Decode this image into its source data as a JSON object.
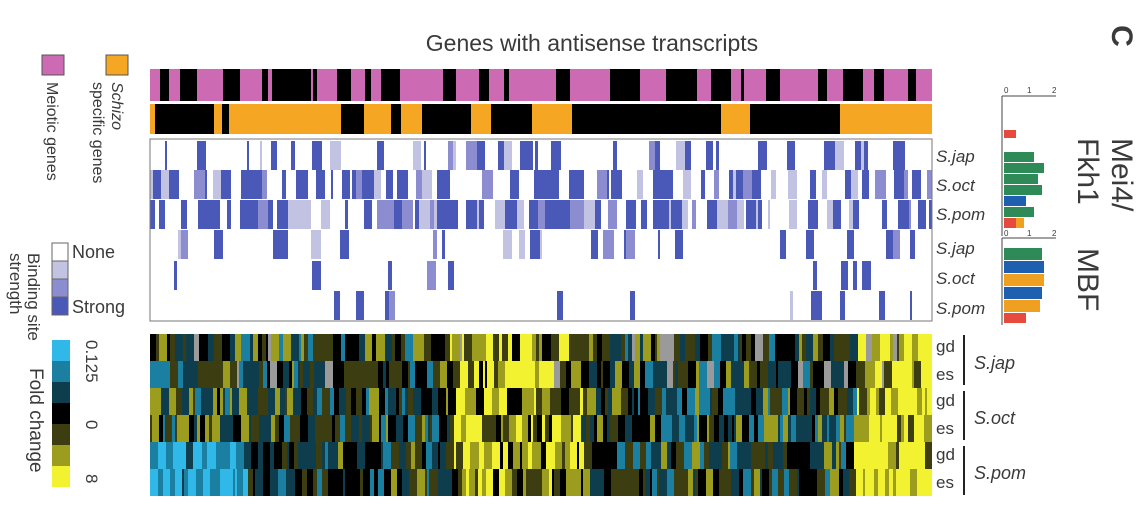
{
  "panel_label": "C",
  "title": "Genes with antisense transcripts",
  "tracks": {
    "meiotic_label": "Meiotic genes",
    "schizo_label_part1": "Schizo",
    "schizo_label_part2": "specific genes",
    "colors": {
      "meiotic": "#cc6ab3",
      "schizo": "#f5a623",
      "off": "#000000"
    }
  },
  "binding": {
    "legend_title_line1": "Binding site",
    "legend_title_line2": "strength",
    "legend_none": "None",
    "legend_strong": "Strong",
    "levels": [
      "#ffffff",
      "#c2c2e3",
      "#8c8cd0",
      "#4a58b8"
    ],
    "groups": [
      {
        "name_line1": "Mei4/",
        "name_line2": "Fkh1",
        "species": [
          "S.jap",
          "S.oct",
          "S.pom"
        ]
      },
      {
        "name_line1": "MBF",
        "name_line2": "",
        "species": [
          "S.jap",
          "S.oct",
          "S.pom"
        ]
      }
    ],
    "motif_axis": {
      "min": "0",
      "mid": "1",
      "max": "2"
    }
  },
  "fold_change": {
    "legend_title": "Fold change",
    "legend_ticks": [
      "0.125",
      "0",
      "8"
    ],
    "colors": [
      "#2fb8e8",
      "#1a7fa0",
      "#0e3d4d",
      "#000000",
      "#3d3d12",
      "#9c9c1e",
      "#f2f230"
    ],
    "species": [
      {
        "name": "S.jap",
        "rows": [
          "gd",
          "es"
        ]
      },
      {
        "name": "S.oct",
        "rows": [
          "gd",
          "es"
        ]
      },
      {
        "name": "S.pom",
        "rows": [
          "gd",
          "es"
        ]
      }
    ]
  }
}
